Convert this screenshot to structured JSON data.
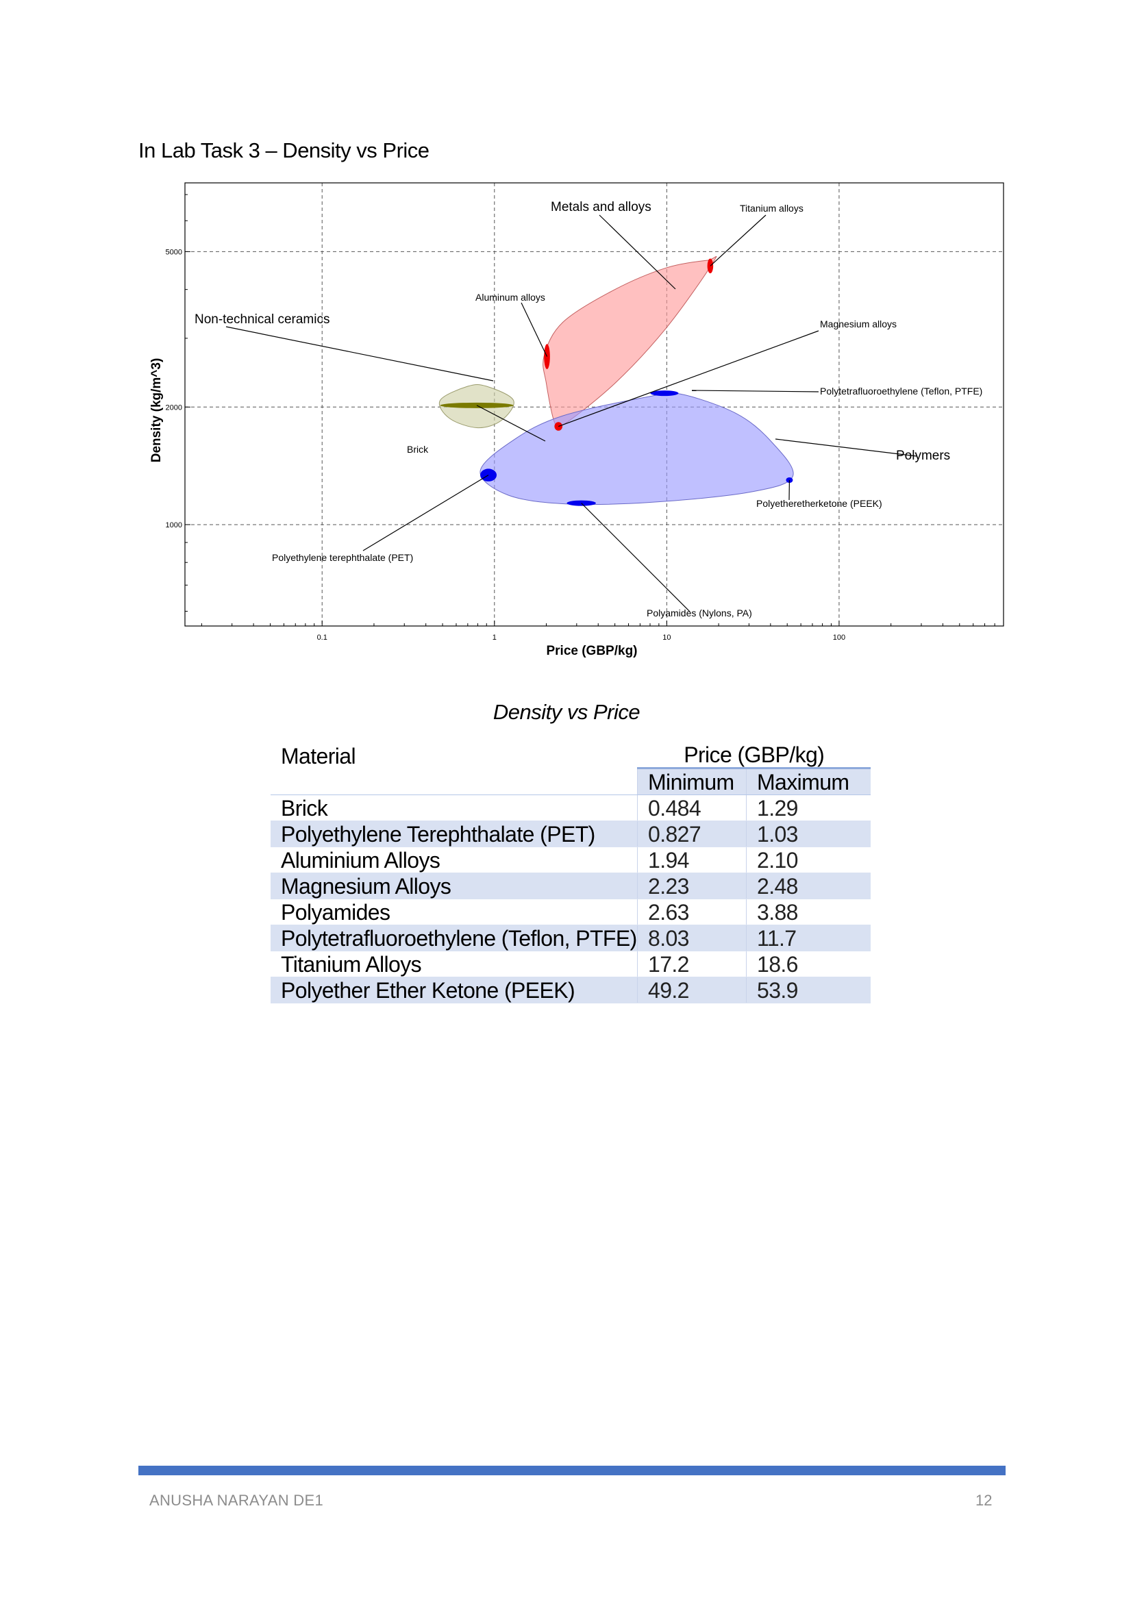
{
  "heading": "In Lab Task 3 – Density vs Price",
  "chart_data": {
    "type": "scatter",
    "title": "",
    "xlabel": "Price (GBP/kg)",
    "ylabel": "Density (kg/m^3)",
    "xscale": "log",
    "yscale": "log",
    "xlim": [
      0.016,
      90
    ],
    "xlim_max": 900,
    "ylim": [
      550,
      7500
    ],
    "grid": true,
    "x_ticks": [
      {
        "value": 0.1,
        "label": "0.1"
      },
      {
        "value": 1,
        "label": "1"
      },
      {
        "value": 10,
        "label": "10"
      },
      {
        "value": 100,
        "label": "100"
      }
    ],
    "y_ticks": [
      {
        "value": 1000,
        "label": "1000"
      },
      {
        "value": 2000,
        "label": "2000"
      },
      {
        "value": 5000,
        "label": "5000"
      }
    ],
    "families": [
      {
        "label": "Metals and alloys",
        "fill": "#ff9999",
        "stroke": "#c46060",
        "hull": [
          [
            1.94,
            2700
          ],
          [
            2.5,
            3300
          ],
          [
            5,
            4000
          ],
          [
            10,
            4550
          ],
          [
            17.2,
            4750
          ],
          [
            18.6,
            4700
          ],
          [
            10,
            3200
          ],
          [
            5,
            2300
          ],
          [
            2.5,
            1800
          ],
          [
            2.23,
            1830
          ],
          [
            2.0,
            2300
          ]
        ]
      },
      {
        "label": "Non-technical ceramics",
        "fill": "#cfd0a6",
        "stroke": "#9a9b6c",
        "hull": [
          [
            0.484,
            2080
          ],
          [
            0.7,
            2260
          ],
          [
            0.9,
            2260
          ],
          [
            1.29,
            2080
          ],
          [
            1.1,
            1850
          ],
          [
            0.8,
            1770
          ],
          [
            0.55,
            1870
          ]
        ]
      },
      {
        "label": "Polymers",
        "fill": "#9999ff",
        "stroke": "#6a6ac8",
        "hull": [
          [
            0.827,
            1370
          ],
          [
            1.3,
            1650
          ],
          [
            2.5,
            1900
          ],
          [
            8,
            2130
          ],
          [
            12,
            2160
          ],
          [
            25,
            1930
          ],
          [
            40,
            1640
          ],
          [
            53.9,
            1330
          ],
          [
            30,
            1210
          ],
          [
            8,
            1140
          ],
          [
            2.6,
            1130
          ],
          [
            1.2,
            1190
          ]
        ]
      }
    ],
    "materials": [
      {
        "label": "Brick",
        "x_min": 0.484,
        "x_max": 1.29,
        "y_min": 1990,
        "y_max": 2050,
        "color": "#7a7a00"
      },
      {
        "label": "Polyethylene terephthalate (PET)",
        "x_min": 0.827,
        "x_max": 1.03,
        "y_min": 1290,
        "y_max": 1390,
        "color": "#0000ee"
      },
      {
        "label": "Aluminum alloys",
        "x_min": 1.94,
        "x_max": 2.1,
        "y_min": 2500,
        "y_max": 2900,
        "color": "#ee0000"
      },
      {
        "label": "Magnesium alloys",
        "x_min": 2.23,
        "x_max": 2.48,
        "y_min": 1740,
        "y_max": 1830,
        "color": "#ee0000"
      },
      {
        "label": "Polyamides (Nylons, PA)",
        "x_min": 2.63,
        "x_max": 3.88,
        "y_min": 1120,
        "y_max": 1150,
        "color": "#0000ee"
      },
      {
        "label": "Polytetrafluoroethylene (Teflon, PTFE)",
        "x_min": 8.03,
        "x_max": 11.7,
        "y_min": 2140,
        "y_max": 2200,
        "color": "#0000ee"
      },
      {
        "label": "Titanium alloys",
        "x_min": 17.2,
        "x_max": 18.6,
        "y_min": 4400,
        "y_max": 4800,
        "color": "#ee0000"
      },
      {
        "label": "Polyetheretherketone (PEEK)",
        "x_min": 49.2,
        "x_max": 53.9,
        "y_min": 1280,
        "y_max": 1320,
        "color": "#0000ee"
      }
    ]
  },
  "table": {
    "caption": "Density vs Price",
    "header_material": "Material",
    "header_price": "Price (GBP/kg)",
    "header_min": "Minimum",
    "header_max": "Maximum",
    "rows": [
      {
        "material": "Brick",
        "min": "0.484",
        "max": "1.29"
      },
      {
        "material": "Polyethylene Terephthalate (PET)",
        "min": "0.827",
        "max": "1.03"
      },
      {
        "material": "Aluminium Alloys",
        "min": "1.94",
        "max": "2.10"
      },
      {
        "material": "Magnesium Alloys",
        "min": "2.23",
        "max": "2.48"
      },
      {
        "material": "Polyamides",
        "min": "2.63",
        "max": "3.88"
      },
      {
        "material": "Polytetrafluoroethylene (Teflon, PTFE)",
        "min": "8.03",
        "max": "11.7"
      },
      {
        "material": "Titanium Alloys",
        "min": "17.2",
        "max": "18.6"
      },
      {
        "material": "Polyether Ether Ketone (PEEK)",
        "min": "49.2",
        "max": "53.9"
      }
    ]
  },
  "footer": {
    "author": "ANUSHA NARAYAN DE1",
    "page_number": "12"
  }
}
